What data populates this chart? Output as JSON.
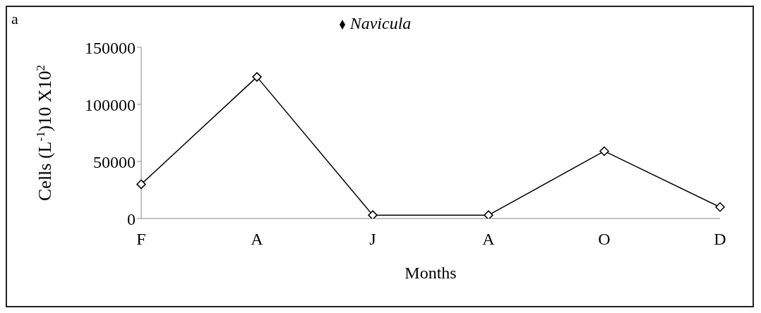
{
  "chart_data": {
    "type": "line",
    "xlabel": "Months",
    "ylabel": "Cells (L$^{-1}$)10 X10$^{2}$",
    "annotations": [
      "a"
    ],
    "categories": [
      "F",
      "A",
      "J",
      "A",
      "O",
      "D"
    ],
    "series": [
      {
        "name": "Navicula",
        "color": "#000000",
        "values": [
          30000,
          124000,
          3000,
          3000,
          59000,
          10000
        ]
      }
    ],
    "ylim": [
      0,
      150000
    ],
    "yticks": [
      0,
      50000,
      100000,
      150000
    ],
    "grid": false,
    "legend": "top",
    "marker": "diamond",
    "line_style": "solid"
  }
}
